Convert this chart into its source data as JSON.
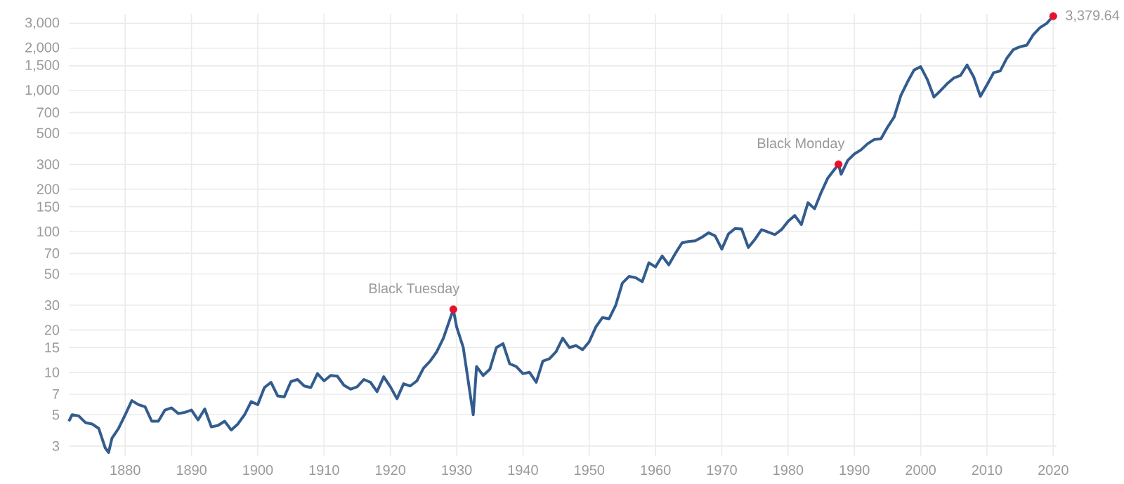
{
  "chart_data": {
    "type": "line",
    "log": "y",
    "grid": true,
    "line_style": "solid",
    "xlim": [
      1871.5,
      2020.5
    ],
    "ylim": [
      2.55,
      3500
    ],
    "xticks": [
      1880,
      1890,
      1900,
      1910,
      1920,
      1930,
      1940,
      1950,
      1960,
      1970,
      1980,
      1990,
      2000,
      2010,
      2020
    ],
    "yticks": [
      3,
      5,
      7,
      10,
      15,
      20,
      30,
      50,
      70,
      100,
      150,
      200,
      300,
      500,
      700,
      {
        "value": 1000,
        "label": "1,000"
      },
      {
        "value": 1500,
        "label": "1,500"
      },
      {
        "value": 2000,
        "label": "2,000"
      },
      {
        "value": 3000,
        "label": "3,000"
      }
    ],
    "series": [
      {
        "color": "#335c8e",
        "marker": "none",
        "x": [
          1871.5,
          1872,
          1873,
          1874,
          1875,
          1876,
          1877,
          1877.5,
          1878,
          1879,
          1880,
          1881,
          1882,
          1883,
          1884,
          1885,
          1886,
          1887,
          1888,
          1889,
          1890,
          1891,
          1892,
          1893,
          1894,
          1895,
          1896,
          1897,
          1898,
          1899,
          1900,
          1901,
          1902,
          1903,
          1904,
          1905,
          1906,
          1907,
          1908,
          1909,
          1910,
          1911,
          1912,
          1913,
          1914,
          1915,
          1916,
          1917,
          1918,
          1919,
          1920,
          1921,
          1922,
          1923,
          1924,
          1925,
          1926,
          1927,
          1928,
          1929.5,
          1930,
          1931,
          1932.5,
          1933,
          1934,
          1935,
          1936,
          1937,
          1938,
          1939,
          1940,
          1941,
          1942,
          1943,
          1944,
          1945,
          1946,
          1947,
          1948,
          1949,
          1950,
          1951,
          1952,
          1953,
          1954,
          1955,
          1956,
          1957,
          1958,
          1959,
          1960,
          1961,
          1962,
          1963,
          1964,
          1965,
          1966,
          1967,
          1968,
          1969,
          1970,
          1971,
          1972,
          1973,
          1974,
          1975,
          1976,
          1977,
          1978,
          1979,
          1980,
          1981,
          1982,
          1983,
          1984,
          1985,
          1986,
          1987.6,
          1988,
          1989,
          1990,
          1991,
          1992,
          1993,
          1994,
          1995,
          1996,
          1997,
          1998,
          1999,
          2000,
          2001,
          2002,
          2003,
          2004,
          2005,
          2006,
          2007,
          2008,
          2009,
          2010,
          2011,
          2012,
          2013,
          2014,
          2015,
          2016,
          2017,
          2018,
          2019,
          2020
        ],
        "values": [
          4.5,
          5.0,
          4.9,
          4.4,
          4.3,
          4.0,
          2.9,
          2.7,
          3.4,
          4.0,
          5.0,
          6.3,
          5.9,
          5.7,
          4.5,
          4.5,
          5.4,
          5.6,
          5.1,
          5.2,
          5.4,
          4.6,
          5.5,
          4.1,
          4.2,
          4.5,
          3.9,
          4.3,
          5.0,
          6.2,
          5.9,
          7.8,
          8.5,
          6.8,
          6.7,
          8.6,
          8.9,
          8.0,
          7.8,
          9.8,
          8.7,
          9.5,
          9.4,
          8.1,
          7.6,
          7.9,
          8.9,
          8.5,
          7.3,
          9.3,
          7.9,
          6.5,
          8.3,
          8.0,
          8.7,
          10.7,
          12.0,
          14.0,
          17.5,
          28,
          21,
          15,
          5.0,
          11,
          9.5,
          10.5,
          15,
          16,
          11.5,
          11,
          9.8,
          10,
          8.5,
          12,
          12.5,
          14,
          17.5,
          15,
          15.5,
          14.5,
          16.5,
          21,
          24.5,
          24,
          30,
          43,
          48,
          47,
          44,
          60,
          56,
          67,
          58,
          70,
          83,
          85,
          86,
          91,
          98,
          93,
          75,
          96,
          105,
          104,
          77,
          88,
          103,
          99,
          95,
          103,
          118,
          130,
          112,
          160,
          145,
          190,
          240,
          300,
          255,
          320,
          355,
          380,
          420,
          450,
          455,
          550,
          650,
          920,
          1150,
          1400,
          1480,
          1200,
          900,
          1000,
          1120,
          1230,
          1280,
          1520,
          1250,
          910,
          1100,
          1340,
          1380,
          1700,
          1960,
          2050,
          2100,
          2500,
          2800,
          3000,
          3379.64
        ]
      },
      {
        "type": "scatter",
        "color": "#e8112d",
        "marker": "circle",
        "x": [
          1929.5,
          1987.6,
          2020
        ],
        "values": [
          28,
          300,
          3379.64
        ]
      }
    ],
    "annotations": [
      {
        "text": "Black Tuesday",
        "x": 1929.5,
        "y": 28
      },
      {
        "text": "Black Monday",
        "x": 1987.6,
        "y": 300
      },
      {
        "text": "3,379.64",
        "x": 2020,
        "y": 3379.64
      }
    ]
  }
}
